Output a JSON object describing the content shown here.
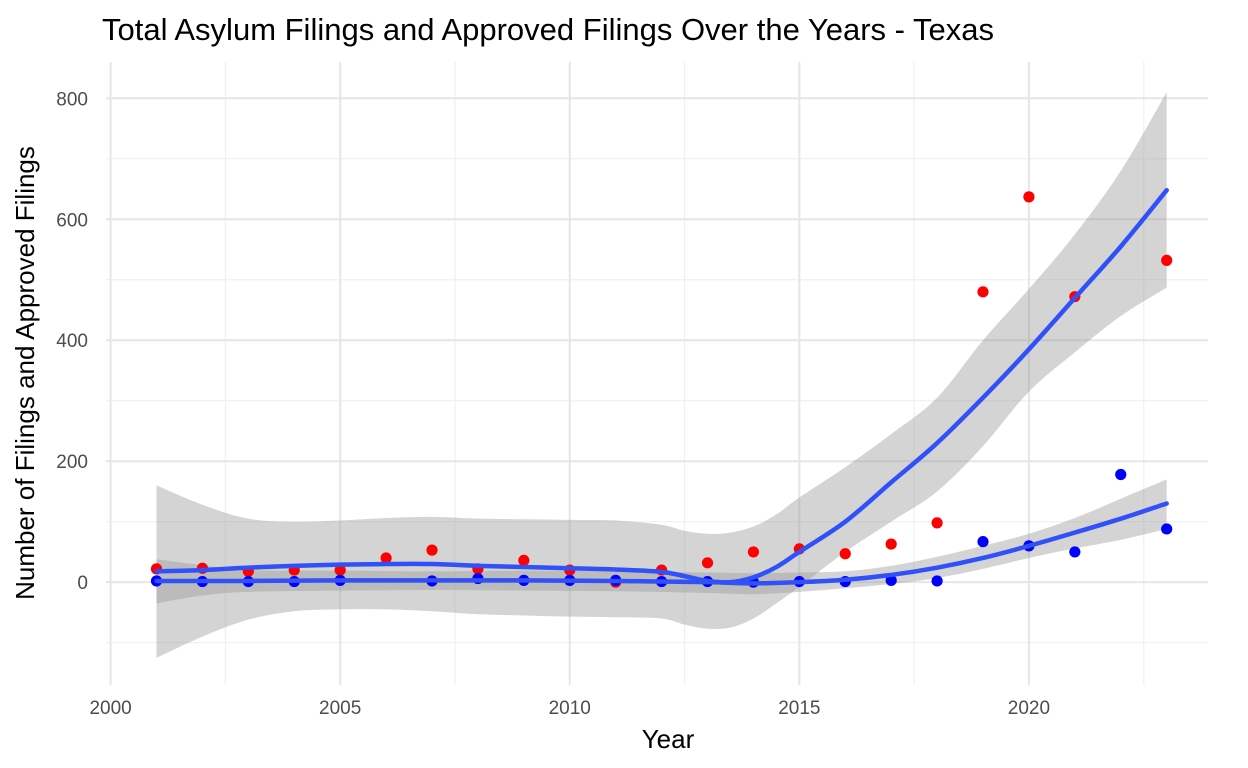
{
  "chart_data": {
    "type": "scatter",
    "title": "Total Asylum Filings and Approved Filings Over the Years - Texas",
    "xlabel": "Year",
    "ylabel": "Number of Filings and Approved Filings",
    "xlim": [
      1999.9,
      2023.9
    ],
    "ylim": [
      -170,
      860
    ],
    "x_ticks": [
      2000,
      2005,
      2010,
      2015,
      2020
    ],
    "x_tick_labels": [
      "2000",
      "2005",
      "2010",
      "2015",
      "2020"
    ],
    "y_ticks": [
      0,
      200,
      400,
      600,
      800
    ],
    "y_tick_labels": [
      "0",
      "200",
      "400",
      "600",
      "800"
    ],
    "grid": true,
    "legend": "none",
    "series": [
      {
        "color": "#ff0000",
        "points": [
          {
            "x": 2001,
            "y": 22
          },
          {
            "x": 2002,
            "y": 23
          },
          {
            "x": 2003,
            "y": 18
          },
          {
            "x": 2004,
            "y": 20
          },
          {
            "x": 2005,
            "y": 20
          },
          {
            "x": 2006,
            "y": 40
          },
          {
            "x": 2007,
            "y": 53
          },
          {
            "x": 2008,
            "y": 22
          },
          {
            "x": 2009,
            "y": 36
          },
          {
            "x": 2010,
            "y": 20
          },
          {
            "x": 2011,
            "y": 0
          },
          {
            "x": 2012,
            "y": 20
          },
          {
            "x": 2013,
            "y": 32
          },
          {
            "x": 2014,
            "y": 50
          },
          {
            "x": 2015,
            "y": 55
          },
          {
            "x": 2016,
            "y": 47
          },
          {
            "x": 2017,
            "y": 63
          },
          {
            "x": 2018,
            "y": 98
          },
          {
            "x": 2019,
            "y": 480
          },
          {
            "x": 2020,
            "y": 637
          },
          {
            "x": 2021,
            "y": 472
          },
          {
            "x": 2023,
            "y": 532
          }
        ],
        "trend": [
          {
            "x": 2001,
            "y": 18
          },
          {
            "x": 2002,
            "y": 20
          },
          {
            "x": 2003,
            "y": 24
          },
          {
            "x": 2004,
            "y": 27
          },
          {
            "x": 2005,
            "y": 29
          },
          {
            "x": 2006,
            "y": 30
          },
          {
            "x": 2007,
            "y": 30
          },
          {
            "x": 2008,
            "y": 27
          },
          {
            "x": 2009,
            "y": 25
          },
          {
            "x": 2010,
            "y": 23
          },
          {
            "x": 2011,
            "y": 21
          },
          {
            "x": 2012,
            "y": 17
          },
          {
            "x": 2012.5,
            "y": 10
          },
          {
            "x": 2013,
            "y": 2
          },
          {
            "x": 2013.5,
            "y": 0
          },
          {
            "x": 2014,
            "y": 8
          },
          {
            "x": 2014.5,
            "y": 25
          },
          {
            "x": 2015,
            "y": 50
          },
          {
            "x": 2016,
            "y": 100
          },
          {
            "x": 2017,
            "y": 165
          },
          {
            "x": 2018,
            "y": 230
          },
          {
            "x": 2019,
            "y": 305
          },
          {
            "x": 2020,
            "y": 385
          },
          {
            "x": 2021,
            "y": 470
          },
          {
            "x": 2022,
            "y": 555
          },
          {
            "x": 2023,
            "y": 648
          }
        ],
        "band": [
          {
            "x": 2001,
            "lo": -125,
            "hi": 160
          },
          {
            "x": 2002,
            "lo": -90,
            "hi": 128
          },
          {
            "x": 2003,
            "lo": -62,
            "hi": 105
          },
          {
            "x": 2004,
            "lo": -48,
            "hi": 100
          },
          {
            "x": 2005,
            "lo": -45,
            "hi": 102
          },
          {
            "x": 2006,
            "lo": -45,
            "hi": 106
          },
          {
            "x": 2007,
            "lo": -48,
            "hi": 108
          },
          {
            "x": 2008,
            "lo": -53,
            "hi": 105
          },
          {
            "x": 2009,
            "lo": -55,
            "hi": 104
          },
          {
            "x": 2010,
            "lo": -57,
            "hi": 103
          },
          {
            "x": 2011,
            "lo": -58,
            "hi": 102
          },
          {
            "x": 2012,
            "lo": -60,
            "hi": 95
          },
          {
            "x": 2012.5,
            "lo": -70,
            "hi": 85
          },
          {
            "x": 2013,
            "lo": -77,
            "hi": 80
          },
          {
            "x": 2013.5,
            "lo": -75,
            "hi": 82
          },
          {
            "x": 2014,
            "lo": -60,
            "hi": 92
          },
          {
            "x": 2014.5,
            "lo": -35,
            "hi": 112
          },
          {
            "x": 2015,
            "lo": -8,
            "hi": 140
          },
          {
            "x": 2016,
            "lo": 50,
            "hi": 190
          },
          {
            "x": 2017,
            "lo": 100,
            "hi": 245
          },
          {
            "x": 2018,
            "lo": 150,
            "hi": 305
          },
          {
            "x": 2019,
            "lo": 225,
            "hi": 400
          },
          {
            "x": 2020,
            "lo": 315,
            "hi": 485
          },
          {
            "x": 2021,
            "lo": 380,
            "hi": 575
          },
          {
            "x": 2022,
            "lo": 440,
            "hi": 680
          },
          {
            "x": 2023,
            "lo": 487,
            "hi": 810
          }
        ]
      },
      {
        "color": "#0000ff",
        "points": [
          {
            "x": 2001,
            "y": 2
          },
          {
            "x": 2002,
            "y": 1
          },
          {
            "x": 2003,
            "y": 1
          },
          {
            "x": 2004,
            "y": 1
          },
          {
            "x": 2005,
            "y": 3
          },
          {
            "x": 2007,
            "y": 2
          },
          {
            "x": 2008,
            "y": 6
          },
          {
            "x": 2009,
            "y": 3
          },
          {
            "x": 2010,
            "y": 3
          },
          {
            "x": 2011,
            "y": 3
          },
          {
            "x": 2012,
            "y": 1
          },
          {
            "x": 2013,
            "y": 1
          },
          {
            "x": 2014,
            "y": 0
          },
          {
            "x": 2015,
            "y": 1
          },
          {
            "x": 2016,
            "y": 1
          },
          {
            "x": 2017,
            "y": 3
          },
          {
            "x": 2018,
            "y": 2
          },
          {
            "x": 2019,
            "y": 67
          },
          {
            "x": 2020,
            "y": 60
          },
          {
            "x": 2021,
            "y": 50
          },
          {
            "x": 2022,
            "y": 178
          },
          {
            "x": 2023,
            "y": 88
          }
        ],
        "trend": [
          {
            "x": 2001,
            "y": 2
          },
          {
            "x": 2003,
            "y": 2
          },
          {
            "x": 2005,
            "y": 3
          },
          {
            "x": 2007,
            "y": 3
          },
          {
            "x": 2009,
            "y": 3
          },
          {
            "x": 2011,
            "y": 2
          },
          {
            "x": 2013,
            "y": 0
          },
          {
            "x": 2014,
            "y": -2
          },
          {
            "x": 2015,
            "y": 0
          },
          {
            "x": 2016,
            "y": 4
          },
          {
            "x": 2017,
            "y": 12
          },
          {
            "x": 2018,
            "y": 24
          },
          {
            "x": 2019,
            "y": 40
          },
          {
            "x": 2020,
            "y": 60
          },
          {
            "x": 2021,
            "y": 82
          },
          {
            "x": 2022,
            "y": 105
          },
          {
            "x": 2023,
            "y": 130
          }
        ],
        "band": [
          {
            "x": 2001,
            "lo": -35,
            "hi": 38
          },
          {
            "x": 2002,
            "lo": -22,
            "hi": 28
          },
          {
            "x": 2003,
            "lo": -16,
            "hi": 20
          },
          {
            "x": 2005,
            "lo": -14,
            "hi": 19
          },
          {
            "x": 2007,
            "lo": -13,
            "hi": 18
          },
          {
            "x": 2009,
            "lo": -14,
            "hi": 19
          },
          {
            "x": 2011,
            "lo": -15,
            "hi": 18
          },
          {
            "x": 2013,
            "lo": -18,
            "hi": 16
          },
          {
            "x": 2014,
            "lo": -20,
            "hi": 15
          },
          {
            "x": 2015,
            "lo": -16,
            "hi": 16
          },
          {
            "x": 2016,
            "lo": -10,
            "hi": 18
          },
          {
            "x": 2017,
            "lo": -3,
            "hi": 27
          },
          {
            "x": 2018,
            "lo": 7,
            "hi": 42
          },
          {
            "x": 2019,
            "lo": 22,
            "hi": 60
          },
          {
            "x": 2020,
            "lo": 40,
            "hi": 80
          },
          {
            "x": 2021,
            "lo": 56,
            "hi": 106
          },
          {
            "x": 2022,
            "lo": 70,
            "hi": 138
          },
          {
            "x": 2023,
            "lo": 88,
            "hi": 170
          }
        ]
      }
    ]
  }
}
